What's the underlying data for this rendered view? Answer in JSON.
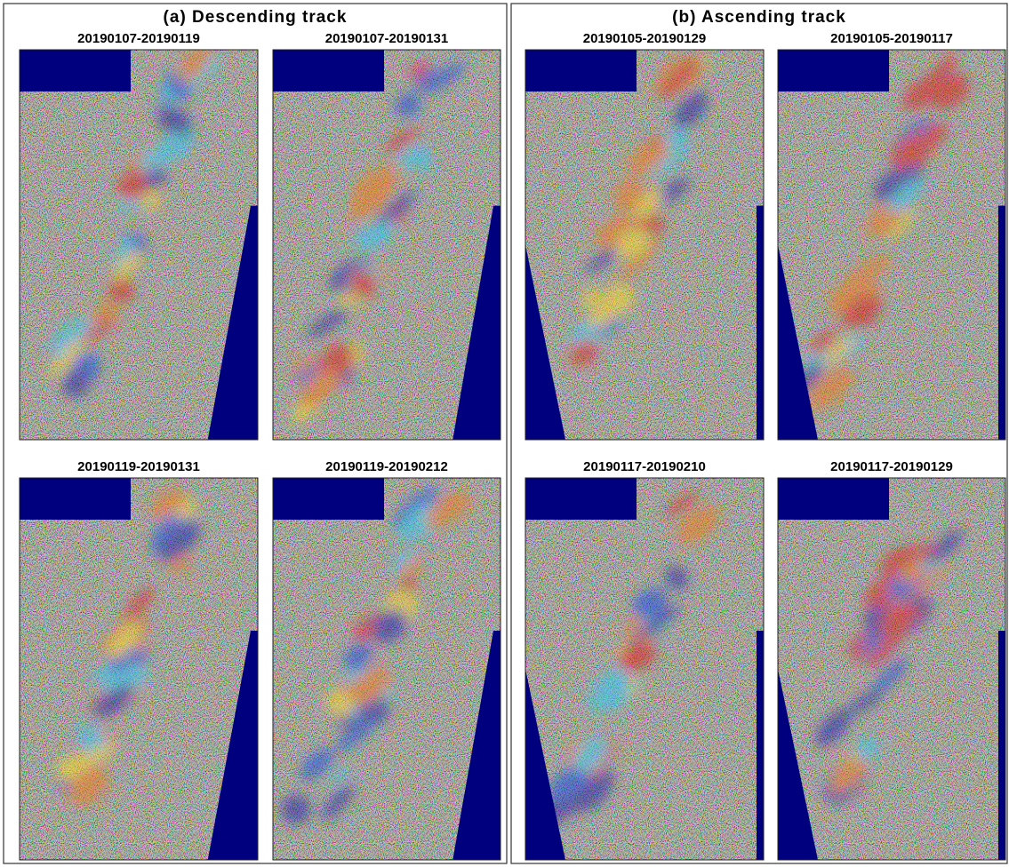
{
  "panels": [
    {
      "title": "(a) Descending track",
      "images": [
        {
          "label": "20190107-20190119"
        },
        {
          "label": "20190107-20190131"
        },
        {
          "label": "20190119-20190131"
        },
        {
          "label": "20190119-20190212"
        }
      ]
    },
    {
      "title": "(b) Ascending track",
      "images": [
        {
          "label": "20190105-20190129"
        },
        {
          "label": "20190105-20190117"
        },
        {
          "label": "20190117-20190210"
        },
        {
          "label": "20190117-20190129"
        }
      ]
    }
  ]
}
